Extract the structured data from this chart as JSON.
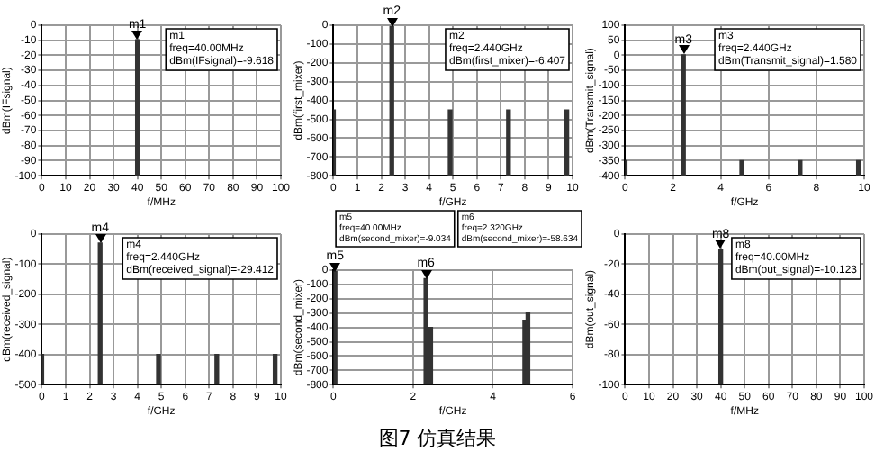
{
  "chart_data": [
    {
      "type": "bar",
      "xlabel": "f/MHz",
      "ylabel": "dBm(IFsignal)",
      "x": [
        40
      ],
      "base": [
        -100
      ],
      "values": [
        90.382
      ],
      "color": "#333333",
      "xlim": [
        0,
        100
      ],
      "xticks": [
        0,
        10,
        20,
        30,
        40,
        50,
        60,
        70,
        80,
        90,
        100
      ],
      "ylim": [
        -100,
        0
      ],
      "yticks": [
        0,
        -10,
        -20,
        -30,
        -40,
        -50,
        -60,
        -70,
        -80,
        -90,
        -100
      ],
      "grid": true,
      "annotations": [
        {
          "text": "m1",
          "x": 40,
          "y": -9.618
        },
        "m1\nfreq=40.00MHz\ndBm(IFsignal)=-9.618"
      ]
    },
    {
      "type": "bar",
      "xlabel": "f/GHz",
      "ylabel": "dBm(first_mixer)",
      "x": [
        0,
        2.44,
        4.88,
        7.32,
        9.76
      ],
      "base": [
        -800,
        -800,
        -800,
        -800,
        -800
      ],
      "values": [
        350,
        793.593,
        350,
        350,
        350
      ],
      "color": "#333333",
      "xlim": [
        0,
        10
      ],
      "xticks": [
        0,
        1,
        2,
        3,
        4,
        5,
        6,
        7,
        8,
        9,
        10
      ],
      "ylim": [
        -800,
        0
      ],
      "yticks": [
        0,
        -100,
        -200,
        -300,
        -400,
        -500,
        -600,
        -700,
        -800
      ],
      "grid": true,
      "annotations": [
        {
          "text": "m2",
          "x": 2.44,
          "y": -6.407
        },
        "m2\nfreq=2.440GHz\ndBm(first_mixer)=-6.407"
      ]
    },
    {
      "type": "bar",
      "xlabel": "f/GHz",
      "ylabel": "dBm(Transmit_signal)",
      "x": [
        0,
        2.44,
        4.88,
        7.32,
        9.76
      ],
      "base": [
        -400,
        -400,
        -400,
        -400,
        -400
      ],
      "values": [
        50,
        401.58,
        50,
        50,
        50
      ],
      "color": "#333333",
      "xlim": [
        0,
        10
      ],
      "xticks": [
        0,
        2,
        4,
        6,
        8,
        10
      ],
      "ylim": [
        -400,
        100
      ],
      "yticks": [
        100,
        50,
        0,
        -50,
        -100,
        -150,
        -200,
        -250,
        -300,
        -350,
        -400
      ],
      "grid": true,
      "annotations": [
        {
          "text": "m3",
          "x": 2.44,
          "y": 1.58
        },
        "m3\nfreq=2.440GHz\ndBm(Transmit_signal)=1.580"
      ]
    },
    {
      "type": "bar",
      "xlabel": "f/GHz",
      "ylabel": "dBm(received_signal)",
      "x": [
        0,
        2.44,
        4.88,
        7.32,
        9.76
      ],
      "base": [
        -500,
        -500,
        -500,
        -500,
        -500
      ],
      "values": [
        100,
        470.588,
        100,
        100,
        100
      ],
      "color": "#333333",
      "xlim": [
        0,
        10
      ],
      "xticks": [
        0,
        1,
        2,
        3,
        4,
        5,
        6,
        7,
        8,
        9,
        10
      ],
      "ylim": [
        -500,
        0
      ],
      "yticks": [
        0,
        -100,
        -200,
        -300,
        -400,
        -500
      ],
      "grid": true,
      "annotations": [
        {
          "text": "m4",
          "x": 2.44,
          "y": -29.412
        },
        "m4\nfreq=2.440GHz\ndBm(received_signal)=-29.412"
      ]
    },
    {
      "type": "bar",
      "xlabel": "f/GHz",
      "ylabel": "dBm(second_mixer)",
      "x": [
        0.04,
        2.32,
        2.44,
        4.8,
        4.88
      ],
      "base": [
        -800,
        -800,
        -800,
        -800,
        -800
      ],
      "values": [
        790.966,
        741.366,
        400,
        450,
        500
      ],
      "color": "#333333",
      "xlim": [
        0,
        6
      ],
      "xticks": [
        0,
        2,
        4,
        6
      ],
      "ylim": [
        -800,
        0
      ],
      "yticks": [
        0,
        -100,
        -200,
        -300,
        -400,
        -500,
        -600,
        -700,
        -800
      ],
      "grid": true,
      "annotations": [
        {
          "text": "m5",
          "x": 0.04,
          "y": -9.034
        },
        {
          "text": "m6",
          "x": 2.32,
          "y": -58.634
        },
        "m5\nfreq=40.00MHz\ndBm(second_mixer)=-9.034",
        "m6\nfreq=2.320GHz\ndBm(second_mixer)=-58.634"
      ]
    },
    {
      "type": "bar",
      "xlabel": "f/MHz",
      "ylabel": "dBm(out_signal)",
      "x": [
        40
      ],
      "base": [
        -100
      ],
      "values": [
        89.877
      ],
      "color": "#333333",
      "xlim": [
        0,
        100
      ],
      "xticks": [
        0,
        10,
        20,
        30,
        40,
        50,
        60,
        70,
        80,
        90,
        100
      ],
      "ylim": [
        -100,
        0
      ],
      "yticks": [
        0,
        -20,
        -40,
        -60,
        -80,
        -100
      ],
      "grid": true,
      "annotations": [
        {
          "text": "m8",
          "x": 40,
          "y": -10.123
        },
        "m8\nfreq=40.00MHz\ndBm(out_signal)=-10.123"
      ]
    },
    {
      "type": "other",
      "title": "图7 仿真结果"
    }
  ]
}
